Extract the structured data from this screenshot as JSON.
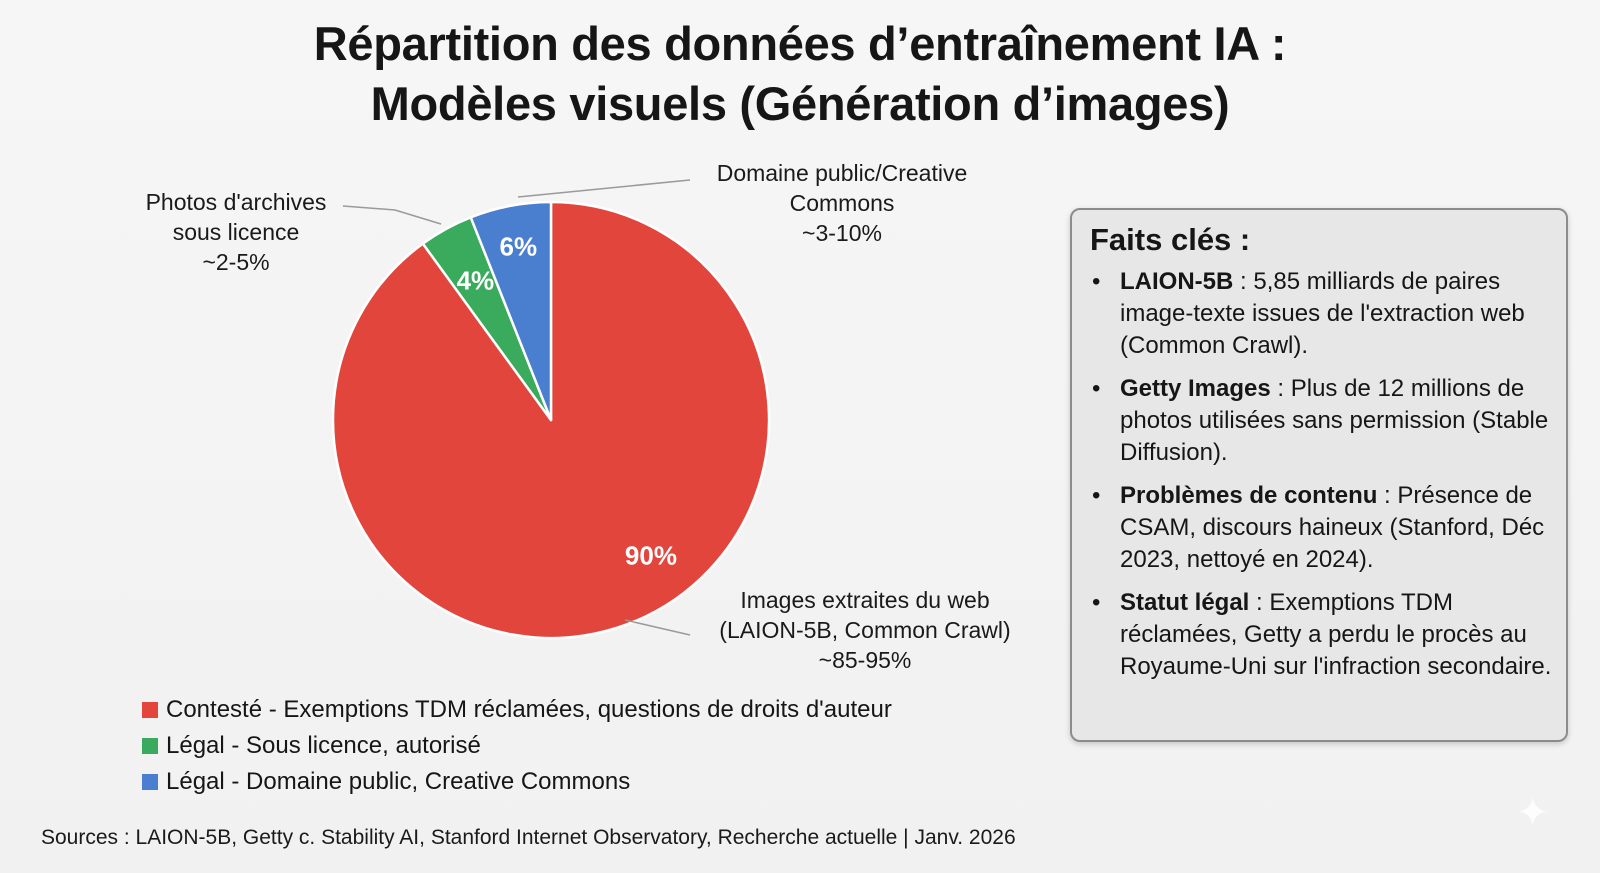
{
  "title": {
    "line1": "Répartition des données d’entraînement IA :",
    "line2": "Modèles visuels (Génération d’images)"
  },
  "colors": {
    "red": "#e2453c",
    "green": "#3aaa5c",
    "blue": "#4a7fd0",
    "callout_line": "#9a9a9a"
  },
  "chart_data": {
    "type": "pie",
    "title": "Répartition des données d’entraînement IA : Modèles visuels (Génération d’images)",
    "start": "top, clockwise",
    "slices": [
      {
        "label": "Images extraites du web (LAION-5B, Common Crawl)",
        "value": 90,
        "display": "90%",
        "range": "~85-95%",
        "callout_lines": [
          "Images extraites du web",
          "(LAION-5B, Common Crawl)",
          "~85-95%"
        ],
        "color": "#e2453c"
      },
      {
        "label": "Photos d'archives sous licence",
        "value": 4,
        "display": "4%",
        "range": "~2-5%",
        "callout_lines": [
          "Photos d'archives",
          "sous licence",
          "~2-5%"
        ],
        "color": "#3aaa5c"
      },
      {
        "label": "Domaine public/Creative Commons",
        "value": 6,
        "display": "6%",
        "range": "~3-10%",
        "callout_lines": [
          "Domaine public/Creative",
          "Commons",
          "~3-10%"
        ],
        "color": "#4a7fd0"
      }
    ],
    "legend": [
      {
        "label": "Contesté - Exemptions TDM réclamées, questions de droits d'auteur",
        "color": "#e2453c"
      },
      {
        "label": "Légal - Sous licence, autorisé",
        "color": "#3aaa5c"
      },
      {
        "label": "Légal - Domaine public, Creative Commons",
        "color": "#4a7fd0"
      }
    ],
    "legend_position": "bottom-left"
  },
  "facts": {
    "title": "Faits clés :",
    "bullet": "•",
    "items": [
      {
        "bold": "LAION-5B",
        "text": " : 5,85 milliards de paires image-texte issues de l'extraction web (Common Crawl)."
      },
      {
        "bold": "Getty Images",
        "text": " : Plus de 12 millions de photos utilisées sans permission (Stable Diffusion)."
      },
      {
        "bold": "Problèmes de contenu",
        "text": " : Présence de CSAM, discours haineux (Stanford, Déc 2023, nettoyé en 2024)."
      },
      {
        "bold": "Statut légal",
        "text": " : Exemptions TDM réclamées, Getty a perdu le procès au Royaume-Uni sur l'infraction secondaire."
      }
    ]
  },
  "sources": "Sources : LAION-5B, Getty c. Stability AI, Stanford Internet Observatory, Recherche actuelle | Janv. 2026",
  "watermark_icon": "sparkle-icon"
}
